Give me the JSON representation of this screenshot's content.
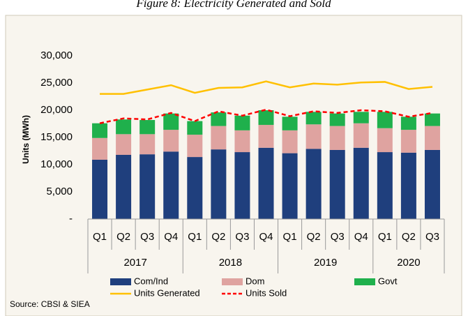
{
  "chart_data": {
    "type": "stacked-bar-line",
    "title": "Figure 8: Electricity Generated and Sold",
    "y_label": "Units (MWh)",
    "source": "Source: CBSI & SIEA",
    "categories": [
      "Q1",
      "Q2",
      "Q3",
      "Q4",
      "Q1",
      "Q2",
      "Q3",
      "Q4",
      "Q1",
      "Q2",
      "Q3",
      "Q4",
      "Q1",
      "Q2",
      "Q3"
    ],
    "groups": [
      {
        "name": "2017",
        "span": 4
      },
      {
        "name": "2018",
        "span": 4
      },
      {
        "name": "2019",
        "span": 4
      },
      {
        "name": "2020",
        "span": 3
      }
    ],
    "series": [
      {
        "name": "Com/Ind",
        "type": "bar",
        "color": "#1f3f7d",
        "values": [
          10900,
          11800,
          11900,
          12400,
          11400,
          12800,
          12300,
          13100,
          12100,
          12900,
          12700,
          13100,
          12300,
          12200,
          12700
        ]
      },
      {
        "name": "Dom",
        "type": "bar",
        "color": "#dfa3a0",
        "values": [
          4000,
          3800,
          3700,
          4000,
          4100,
          4300,
          4000,
          4200,
          4200,
          4500,
          4400,
          4500,
          4400,
          4200,
          4400
        ]
      },
      {
        "name": "Govt",
        "type": "bar",
        "color": "#1fb04c",
        "values": [
          2700,
          2700,
          2600,
          3000,
          2500,
          2500,
          2700,
          2700,
          2500,
          2300,
          2300,
          2100,
          3000,
          2400,
          2300
        ]
      },
      {
        "name": "Units Generated",
        "type": "line",
        "color": "#ffc000",
        "values": [
          23000,
          23000,
          23800,
          24600,
          23200,
          24100,
          24200,
          25300,
          24200,
          24900,
          24700,
          25100,
          25200,
          23900,
          24300
        ]
      },
      {
        "name": "Units Sold",
        "type": "dashed-line",
        "color": "#ff0000",
        "values": [
          17600,
          18500,
          18300,
          19500,
          18000,
          19800,
          19000,
          20100,
          18900,
          19800,
          19500,
          20000,
          19800,
          18800,
          19500
        ]
      }
    ],
    "ylim": [
      0,
      30000
    ],
    "yticks": [
      {
        "value": 0,
        "label": "-"
      },
      {
        "value": 5000,
        "label": "5,000"
      },
      {
        "value": 10000,
        "label": "10,000"
      },
      {
        "value": 15000,
        "label": "15,000"
      },
      {
        "value": 20000,
        "label": "20,000"
      },
      {
        "value": 25000,
        "label": "25,000"
      },
      {
        "value": 30000,
        "label": "30,000"
      }
    ],
    "grid": false
  }
}
